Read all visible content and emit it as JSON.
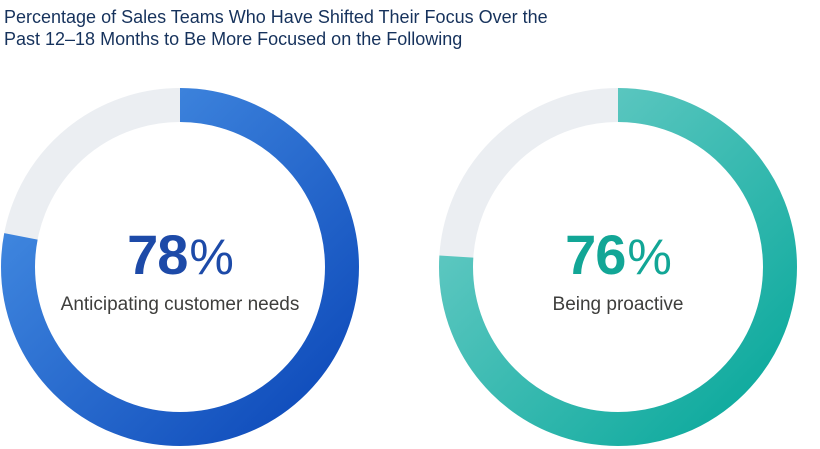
{
  "title": "Percentage of Sales Teams Who Have Shifted Their Focus Over the Past 12–18 Months to Be More Focused on the Following",
  "chart_data": [
    {
      "type": "donut",
      "value": 78,
      "unit": "%",
      "label": "Anticipating customer needs",
      "color_start": "#0b47b8",
      "color_end": "#4a93e6",
      "text_color": "#1d4aa8",
      "track_color": "#ebeef2"
    },
    {
      "type": "donut",
      "value": 76,
      "unit": "%",
      "label": "Being proactive",
      "color_start": "#06a79a",
      "color_end": "#72cfca",
      "text_color": "#12a696",
      "track_color": "#ebeef2"
    }
  ]
}
